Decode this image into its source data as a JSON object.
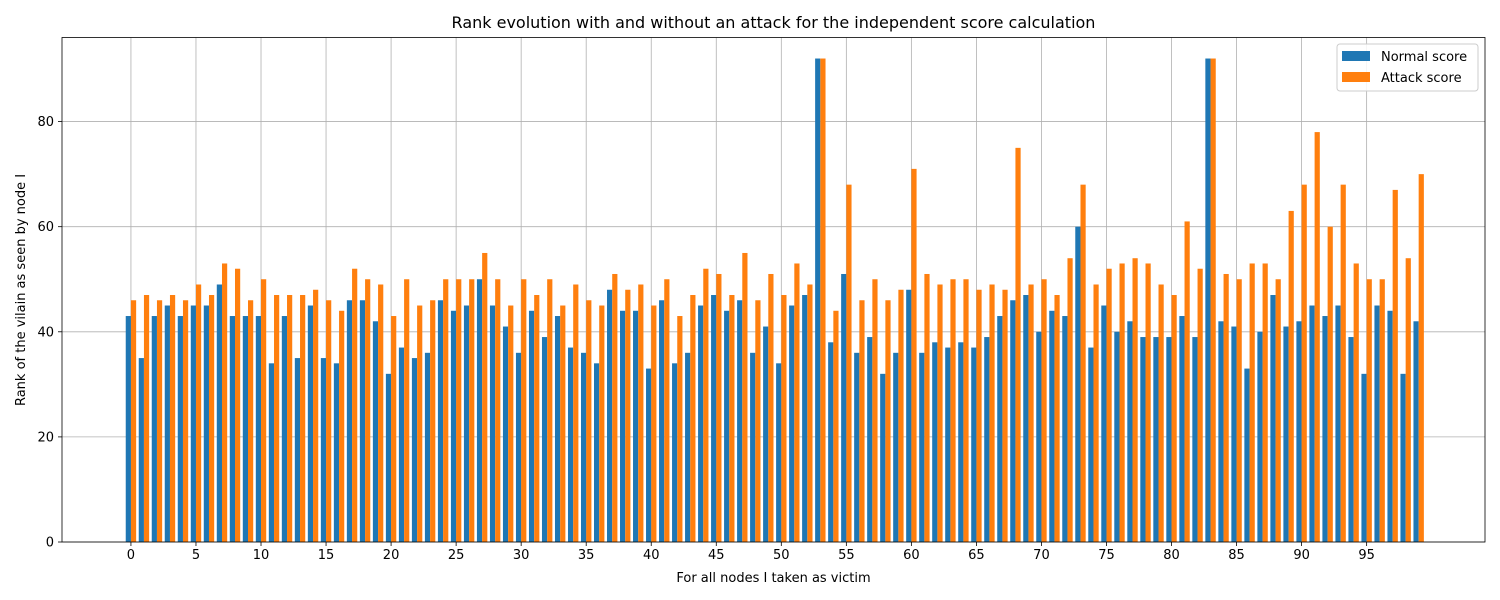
{
  "chart_data": {
    "type": "bar",
    "title": "Rank evolution with and without an attack for the independent score calculation",
    "xlabel": "For all nodes I taken as victim",
    "ylabel": "Rank of the vilain as seen by node I",
    "ylim": [
      0,
      96
    ],
    "xlim": [
      -5.3,
      104.1
    ],
    "x_ticks": [
      0,
      5,
      10,
      15,
      20,
      25,
      30,
      35,
      40,
      45,
      50,
      55,
      60,
      65,
      70,
      75,
      80,
      85,
      90,
      95
    ],
    "y_ticks": [
      0,
      20,
      40,
      60,
      80
    ],
    "grid": true,
    "legend_position": "top-right",
    "x": [
      0,
      1,
      2,
      3,
      4,
      5,
      6,
      7,
      8,
      9,
      10,
      11,
      12,
      13,
      14,
      15,
      16,
      17,
      18,
      19,
      20,
      21,
      22,
      23,
      24,
      25,
      26,
      27,
      28,
      29,
      30,
      31,
      32,
      33,
      34,
      35,
      36,
      37,
      38,
      39,
      40,
      41,
      42,
      43,
      44,
      45,
      46,
      47,
      48,
      49,
      50,
      51,
      52,
      53,
      54,
      55,
      56,
      57,
      58,
      59,
      60,
      61,
      62,
      63,
      64,
      65,
      66,
      67,
      68,
      69,
      70,
      71,
      72,
      73,
      74,
      75,
      76,
      77,
      78,
      79,
      80,
      81,
      82,
      83,
      84,
      85,
      86,
      87,
      88,
      89,
      90,
      91,
      92,
      93,
      94,
      95,
      96,
      97,
      98,
      99
    ],
    "series": [
      {
        "name": "Normal score",
        "color": "#1f77b4",
        "values": [
          43,
          35,
          43,
          45,
          43,
          45,
          45,
          49,
          43,
          43,
          43,
          34,
          43,
          35,
          45,
          35,
          34,
          46,
          46,
          42,
          32,
          37,
          35,
          36,
          46,
          44,
          45,
          50,
          45,
          41,
          36,
          44,
          39,
          43,
          37,
          36,
          34,
          48,
          44,
          44,
          33,
          46,
          34,
          36,
          45,
          47,
          44,
          46,
          36,
          41,
          34,
          45,
          47,
          92,
          38,
          51,
          36,
          39,
          32,
          36,
          48,
          36,
          38,
          37,
          38,
          37,
          39,
          43,
          46,
          47,
          40,
          44,
          43,
          60,
          37,
          45,
          40,
          42,
          39,
          39,
          39,
          43,
          39,
          92,
          42,
          41,
          33,
          40,
          47,
          41,
          42,
          45,
          43,
          45,
          39,
          32,
          45,
          44,
          32,
          42
        ]
      },
      {
        "name": "Attack score",
        "color": "#ff7f0e",
        "values": [
          46,
          47,
          46,
          47,
          46,
          49,
          47,
          53,
          52,
          46,
          50,
          47,
          47,
          47,
          48,
          46,
          44,
          52,
          50,
          49,
          43,
          50,
          45,
          46,
          50,
          50,
          50,
          55,
          50,
          45,
          50,
          47,
          50,
          45,
          49,
          46,
          45,
          51,
          48,
          49,
          45,
          50,
          43,
          47,
          52,
          51,
          47,
          55,
          46,
          51,
          47,
          53,
          49,
          92,
          44,
          68,
          46,
          50,
          46,
          48,
          71,
          51,
          49,
          50,
          50,
          48,
          49,
          48,
          75,
          49,
          50,
          47,
          54,
          68,
          49,
          52,
          53,
          54,
          53,
          49,
          47,
          61,
          52,
          92,
          51,
          50,
          53,
          53,
          50,
          63,
          68,
          78,
          60,
          68,
          53,
          50,
          50,
          67,
          54,
          70
        ]
      }
    ]
  }
}
